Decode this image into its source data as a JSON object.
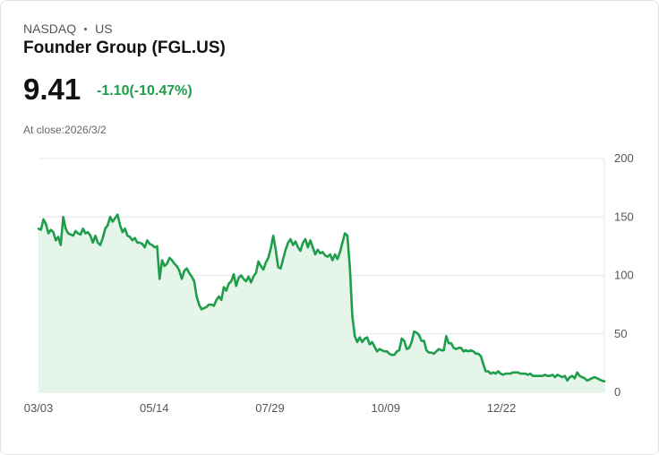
{
  "header": {
    "exchange": "NASDAQ",
    "country": "US",
    "title": "Founder Group (FGL.US)",
    "price": "9.41",
    "change": "-1.10(-10.47%)",
    "close_label": "At close:2026/3/2"
  },
  "colors": {
    "line": "#1e9e4a",
    "fill": "#e6f5ea",
    "grid": "#e6e6e6"
  },
  "chart_data": {
    "type": "area",
    "title": "",
    "xlabel": "",
    "ylabel": "",
    "ylim": [
      0,
      200
    ],
    "yticks": [
      200,
      150,
      100,
      50,
      0
    ],
    "xticks": [
      "03/03",
      "05/14",
      "07/29",
      "10/09",
      "12/22"
    ],
    "series": [
      {
        "name": "FGL.US",
        "values": [
          140,
          139,
          148,
          144,
          136,
          139,
          137,
          130,
          133,
          126,
          150,
          140,
          136,
          135,
          134,
          138,
          136,
          135,
          140,
          136,
          137,
          134,
          128,
          134,
          128,
          126,
          132,
          140,
          143,
          150,
          146,
          149,
          152,
          143,
          137,
          140,
          134,
          133,
          130,
          132,
          128,
          128,
          127,
          124,
          130,
          127,
          126,
          124,
          125,
          97,
          113,
          108,
          110,
          115,
          113,
          110,
          108,
          104,
          97,
          104,
          106,
          102,
          99,
          95,
          82,
          75,
          71,
          72,
          73,
          75,
          75,
          74,
          79,
          82,
          79,
          90,
          87,
          93,
          95,
          101,
          91,
          98,
          100,
          97,
          95,
          99,
          94,
          99,
          102,
          112,
          108,
          105,
          111,
          115,
          123,
          134,
          122,
          107,
          106,
          114,
          122,
          128,
          131,
          126,
          129,
          124,
          121,
          128,
          131,
          124,
          130,
          124,
          118,
          122,
          119,
          120,
          117,
          116,
          118,
          113,
          118,
          114,
          120,
          128,
          136,
          134,
          107,
          65,
          48,
          43,
          47,
          43,
          46,
          47,
          41,
          43,
          39,
          35,
          37,
          36,
          35,
          35,
          33,
          32,
          32,
          35,
          36,
          46,
          44,
          37,
          38,
          43,
          52,
          51,
          49,
          44,
          44,
          36,
          34,
          34,
          33,
          35,
          37,
          36,
          36,
          48,
          42,
          42,
          38,
          37,
          38,
          38,
          35,
          36,
          35,
          36,
          35,
          33,
          33,
          31,
          24,
          18,
          18,
          16,
          17,
          16,
          18,
          16,
          15,
          16,
          16,
          16,
          17,
          17,
          17,
          16,
          16,
          16,
          15,
          16,
          14,
          14,
          14,
          14,
          14,
          15,
          14,
          14,
          15,
          13,
          15,
          14,
          13,
          14,
          10,
          13,
          14,
          12,
          17,
          14,
          13,
          12,
          10,
          11,
          12,
          13,
          12,
          11,
          10,
          9.41
        ]
      }
    ]
  }
}
